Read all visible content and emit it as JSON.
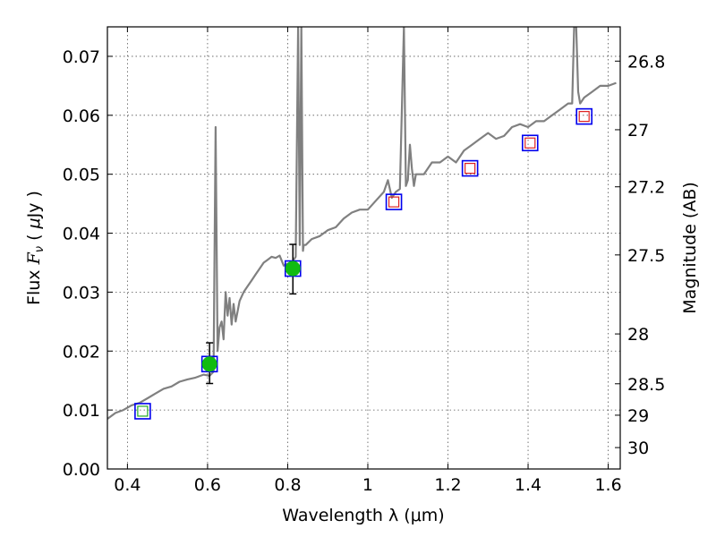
{
  "chart_data": {
    "type": "line",
    "xlabel": "Wavelength  λ (μm)",
    "ylabel_left": {
      "text": "Flux  ",
      "symbol": "F",
      "symbol_sub": "ν",
      "unit_open": "  ( ",
      "unit_mu": "μ",
      "unit_rest": "Jy )"
    },
    "ylabel_right": "Magnitude (AB)",
    "xlim": [
      0.35,
      1.63
    ],
    "ylim": [
      0.0,
      0.075
    ],
    "grid": true,
    "x_ticks": [
      {
        "value": 0.4,
        "label": "0.4"
      },
      {
        "value": 0.6,
        "label": "0.6"
      },
      {
        "value": 0.8,
        "label": "0.8"
      },
      {
        "value": 1.0,
        "label": "1"
      },
      {
        "value": 1.2,
        "label": "1.2"
      },
      {
        "value": 1.4,
        "label": "1.4"
      },
      {
        "value": 1.6,
        "label": "1.6"
      }
    ],
    "y_ticks": [
      {
        "value": 0.0,
        "label": "0.00"
      },
      {
        "value": 0.01,
        "label": "0.01"
      },
      {
        "value": 0.02,
        "label": "0.02"
      },
      {
        "value": 0.03,
        "label": "0.03"
      },
      {
        "value": 0.04,
        "label": "0.04"
      },
      {
        "value": 0.05,
        "label": "0.05"
      },
      {
        "value": 0.06,
        "label": "0.06"
      },
      {
        "value": 0.07,
        "label": "0.07"
      }
    ],
    "right_ticks": [
      {
        "mag": 26.8,
        "label": "26.8"
      },
      {
        "mag": 27.0,
        "label": "27"
      },
      {
        "mag": 27.2,
        "label": "27.2"
      },
      {
        "mag": 27.5,
        "label": "27.5"
      },
      {
        "mag": 28.0,
        "label": "28"
      },
      {
        "mag": 28.5,
        "label": "28.5"
      },
      {
        "mag": 29.0,
        "label": "29"
      },
      {
        "mag": 30.0,
        "label": "30"
      }
    ],
    "spectrum": {
      "color": "#808080",
      "x": [
        0.35,
        0.37,
        0.39,
        0.41,
        0.43,
        0.45,
        0.47,
        0.49,
        0.51,
        0.53,
        0.55,
        0.57,
        0.59,
        0.605,
        0.615,
        0.62,
        0.625,
        0.63,
        0.635,
        0.64,
        0.645,
        0.65,
        0.655,
        0.66,
        0.665,
        0.67,
        0.68,
        0.69,
        0.7,
        0.71,
        0.72,
        0.73,
        0.74,
        0.75,
        0.76,
        0.77,
        0.78,
        0.79,
        0.8,
        0.81,
        0.82,
        0.826,
        0.83,
        0.834,
        0.838,
        0.84,
        0.845,
        0.86,
        0.88,
        0.9,
        0.92,
        0.94,
        0.96,
        0.98,
        1.0,
        1.02,
        1.04,
        1.05,
        1.06,
        1.07,
        1.08,
        1.09,
        1.095,
        1.1,
        1.105,
        1.11,
        1.115,
        1.12,
        1.14,
        1.16,
        1.18,
        1.2,
        1.22,
        1.24,
        1.26,
        1.28,
        1.3,
        1.32,
        1.34,
        1.36,
        1.38,
        1.4,
        1.42,
        1.44,
        1.46,
        1.48,
        1.5,
        1.51,
        1.515,
        1.52,
        1.525,
        1.53,
        1.54,
        1.56,
        1.58,
        1.6,
        1.62
      ],
      "y": [
        0.0085,
        0.0095,
        0.01,
        0.0108,
        0.0112,
        0.012,
        0.0128,
        0.0136,
        0.014,
        0.0148,
        0.0152,
        0.0155,
        0.016,
        0.0158,
        0.0165,
        0.058,
        0.02,
        0.024,
        0.025,
        0.022,
        0.03,
        0.026,
        0.029,
        0.0245,
        0.028,
        0.025,
        0.0285,
        0.03,
        0.031,
        0.032,
        0.033,
        0.034,
        0.035,
        0.0355,
        0.036,
        0.0358,
        0.0362,
        0.0345,
        0.0348,
        0.035,
        0.036,
        0.075,
        0.038,
        0.075,
        0.037,
        0.038,
        0.038,
        0.039,
        0.0395,
        0.0405,
        0.041,
        0.0425,
        0.0435,
        0.044,
        0.044,
        0.0455,
        0.047,
        0.049,
        0.046,
        0.047,
        0.0475,
        0.075,
        0.048,
        0.049,
        0.055,
        0.051,
        0.048,
        0.05,
        0.05,
        0.052,
        0.052,
        0.053,
        0.052,
        0.054,
        0.055,
        0.056,
        0.057,
        0.056,
        0.0565,
        0.058,
        0.0585,
        0.058,
        0.059,
        0.059,
        0.06,
        0.061,
        0.062,
        0.062,
        0.075,
        0.075,
        0.064,
        0.062,
        0.063,
        0.064,
        0.065,
        0.065,
        0.0655
      ]
    },
    "photometry_open": {
      "x": [
        0.438,
        0.605,
        0.813,
        1.065,
        1.255,
        1.405,
        1.54
      ],
      "y": [
        0.0098,
        0.0178,
        0.034,
        0.0453,
        0.051,
        0.0553,
        0.0598
      ],
      "outer_color": "#0000ee",
      "inner_colors": [
        "#22aa22",
        "#dd2222",
        "#dd2222",
        "#dd2222",
        "#dd2222",
        "#dd2222",
        "#dd2222"
      ]
    },
    "photometry_filled": {
      "x": [
        0.605,
        0.813
      ],
      "y": [
        0.0178,
        0.034
      ],
      "err_low": [
        0.0145,
        0.0297
      ],
      "err_high": [
        0.0214,
        0.0381
      ],
      "color": "#11bb11"
    }
  }
}
